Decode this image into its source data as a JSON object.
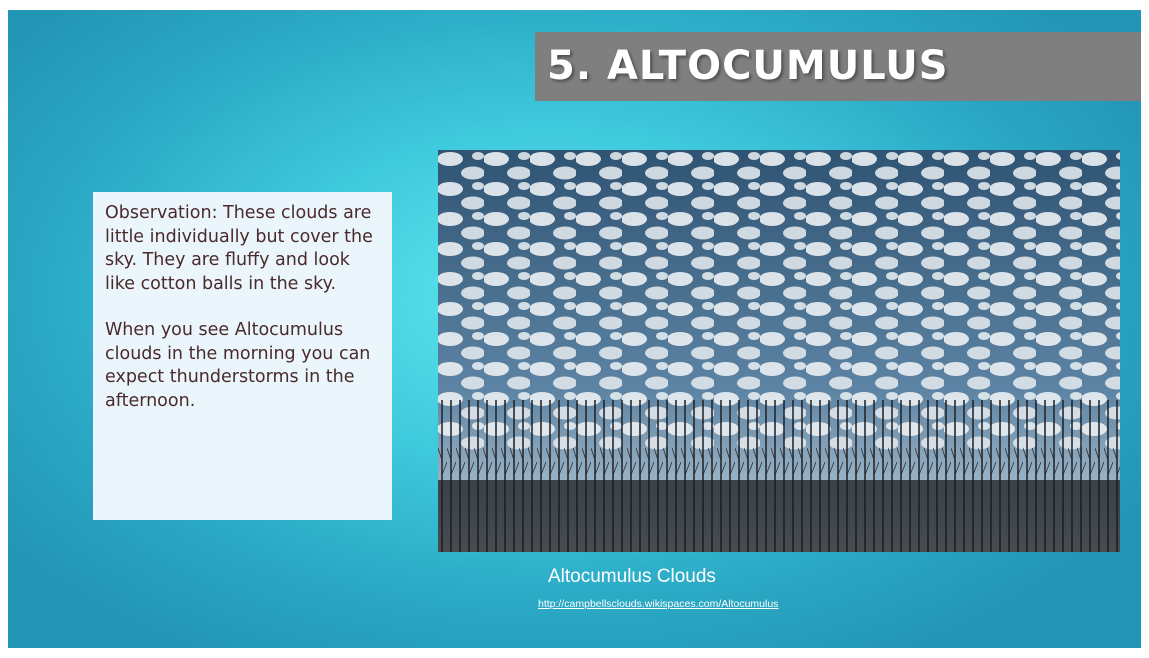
{
  "slide": {
    "title": "5. ALTOCUMULUS",
    "text_box": {
      "paragraphs": [
        "Observation: These clouds are little individually but cover the sky. They are fluffy and look like cotton balls in the sky.",
        "When you see Altocumulus clouds in the morning you can expect thunderstorms in the afternoon."
      ]
    },
    "image": {
      "caption": "Altocumulus Clouds",
      "link": "http://campbellsclouds.wikispaces.com/Altocumulus"
    }
  }
}
